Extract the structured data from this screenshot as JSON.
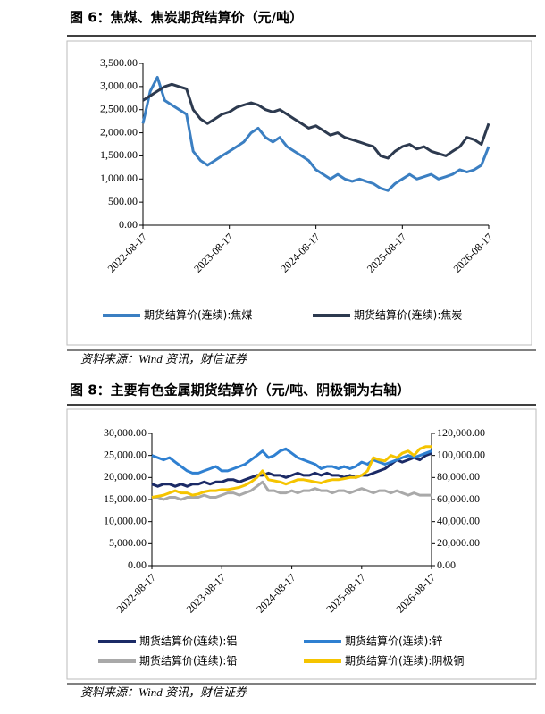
{
  "chart_data": [
    {
      "type": "line",
      "title": "图 6：焦煤、焦炭期货结算价（元/吨）",
      "source": "资料来源：Wind 资讯，财信证券",
      "x": [
        "2022-08-17",
        "2022-09-17",
        "2022-10-17",
        "2022-11-17",
        "2022-12-17",
        "2023-01-17",
        "2023-02-17",
        "2023-03-17",
        "2023-04-17",
        "2023-05-17",
        "2023-06-17",
        "2023-07-17",
        "2023-08-17",
        "2023-09-17",
        "2023-10-17",
        "2023-11-17",
        "2023-12-17",
        "2024-01-17",
        "2024-02-17",
        "2024-03-17",
        "2024-04-17",
        "2024-05-17",
        "2024-06-17",
        "2024-07-17",
        "2024-08-17",
        "2024-09-17",
        "2024-10-17",
        "2024-11-17",
        "2024-12-17",
        "2025-01-17",
        "2025-02-17",
        "2025-03-17",
        "2025-04-17",
        "2025-05-17",
        "2025-06-17",
        "2025-07-17",
        "2025-08-17",
        "2025-09-17",
        "2025-10-17",
        "2025-11-17",
        "2025-12-17",
        "2026-01-17",
        "2026-02-17",
        "2026-03-17",
        "2026-04-17",
        "2026-05-17",
        "2026-06-17",
        "2026-07-17",
        "2026-08-17"
      ],
      "xlim": [
        "2022-08-17",
        "2026-08-17"
      ],
      "xticks": [
        "2022-08-17",
        "2023-08-17",
        "2024-08-17",
        "2025-08-17",
        "2026-08-17"
      ],
      "ylim": [
        0,
        3500
      ],
      "yticks": [
        {
          "value": 0,
          "label": "0.00"
        },
        {
          "value": 500,
          "label": "500.00"
        },
        {
          "value": 1000,
          "label": "1,000.00"
        },
        {
          "value": 1500,
          "label": "1,500.00"
        },
        {
          "value": 2000,
          "label": "2,000.00"
        },
        {
          "value": 2500,
          "label": "2,500.00"
        },
        {
          "value": 3000,
          "label": "3,000.00"
        },
        {
          "value": 3500,
          "label": "3,500.00"
        }
      ],
      "series": [
        {
          "name": "期货结算价(连续):焦煤",
          "color": "#3b7fc2",
          "values": [
            2200,
            2900,
            3200,
            2700,
            2600,
            2500,
            2400,
            1600,
            1400,
            1300,
            1400,
            1500,
            1600,
            1700,
            1800,
            2000,
            2100,
            1900,
            1800,
            1900,
            1700,
            1600,
            1500,
            1400,
            1200,
            1100,
            1000,
            1100,
            1000,
            950,
            1000,
            950,
            900,
            800,
            750,
            900,
            1000,
            1100,
            1000,
            1050,
            1100,
            1000,
            1050,
            1100,
            1200,
            1150,
            1200,
            1300,
            1700
          ]
        },
        {
          "name": "期货结算价(连续):焦炭",
          "color": "#2d3a4f",
          "values": [
            2700,
            2800,
            2900,
            3000,
            3050,
            3000,
            2950,
            2500,
            2300,
            2200,
            2300,
            2400,
            2450,
            2550,
            2600,
            2650,
            2600,
            2500,
            2450,
            2500,
            2400,
            2300,
            2200,
            2100,
            2150,
            2050,
            1950,
            2000,
            1900,
            1850,
            1800,
            1750,
            1700,
            1500,
            1450,
            1600,
            1700,
            1750,
            1650,
            1700,
            1600,
            1550,
            1500,
            1600,
            1700,
            1900,
            1850,
            1750,
            2200
          ]
        }
      ]
    },
    {
      "type": "line",
      "title": "图 8：主要有色金属期货结算价（元/吨、阴极铜为右轴）",
      "source": "资料来源：Wind 资讯，财信证券",
      "x": [
        "2022-08-17",
        "2022-09-17",
        "2022-10-17",
        "2022-11-17",
        "2022-12-17",
        "2023-01-17",
        "2023-02-17",
        "2023-03-17",
        "2023-04-17",
        "2023-05-17",
        "2023-06-17",
        "2023-07-17",
        "2023-08-17",
        "2023-09-17",
        "2023-10-17",
        "2023-11-17",
        "2023-12-17",
        "2024-01-17",
        "2024-02-17",
        "2024-03-17",
        "2024-04-17",
        "2024-05-17",
        "2024-06-17",
        "2024-07-17",
        "2024-08-17",
        "2024-09-17",
        "2024-10-17",
        "2024-11-17",
        "2024-12-17",
        "2025-01-17",
        "2025-02-17",
        "2025-03-17",
        "2025-04-17",
        "2025-05-17",
        "2025-06-17",
        "2025-07-17",
        "2025-08-17",
        "2025-09-17",
        "2025-10-17",
        "2025-11-17",
        "2025-12-17",
        "2026-01-17",
        "2026-02-17",
        "2026-03-17",
        "2026-04-17",
        "2026-05-17",
        "2026-06-17",
        "2026-07-17",
        "2026-08-17"
      ],
      "xlim": [
        "2022-08-17",
        "2026-08-17"
      ],
      "xticks": [
        "2022-08-17",
        "2023-08-17",
        "2024-08-17",
        "2025-08-17",
        "2026-08-17"
      ],
      "ylim": [
        0,
        30000
      ],
      "yticks": [
        {
          "value": 0,
          "label": "0.00"
        },
        {
          "value": 5000,
          "label": "5,000.00"
        },
        {
          "value": 10000,
          "label": "10,000.00"
        },
        {
          "value": 15000,
          "label": "15,000.00"
        },
        {
          "value": 20000,
          "label": "20,000.00"
        },
        {
          "value": 25000,
          "label": "25,000.00"
        },
        {
          "value": 30000,
          "label": "30,000.00"
        }
      ],
      "y2lim": [
        0,
        120000
      ],
      "y2ticks": [
        {
          "value": 0,
          "label": "0.00"
        },
        {
          "value": 20000,
          "label": "20,000.00"
        },
        {
          "value": 40000,
          "label": "40,000.00"
        },
        {
          "value": 60000,
          "label": "60,000.00"
        },
        {
          "value": 80000,
          "label": "80,000.00"
        },
        {
          "value": 100000,
          "label": "100,000.00"
        },
        {
          "value": 120000,
          "label": "120,000.00"
        }
      ],
      "series": [
        {
          "name": "期货结算价(连续):铝",
          "color": "#1b2a66",
          "values": [
            18500,
            18000,
            18500,
            18500,
            18000,
            18500,
            18000,
            18500,
            18500,
            19000,
            18500,
            19000,
            19000,
            19500,
            19500,
            19000,
            19500,
            20000,
            20500,
            20500,
            21000,
            20500,
            20500,
            20000,
            20500,
            21000,
            20500,
            20500,
            21000,
            20500,
            21000,
            20500,
            20500,
            20000,
            20500,
            20000,
            20500,
            20500,
            21000,
            21500,
            22000,
            23000,
            24000,
            23500,
            24000,
            24500,
            24000,
            25000,
            25500
          ]
        },
        {
          "name": "期货结算价(连续):锌",
          "color": "#2f80d1",
          "values": [
            25000,
            24500,
            24000,
            24500,
            23500,
            22500,
            21500,
            21000,
            21000,
            21500,
            22000,
            22500,
            21500,
            21500,
            22000,
            22500,
            23000,
            24000,
            25000,
            26000,
            24500,
            25000,
            26000,
            26500,
            25500,
            24500,
            24000,
            23500,
            23000,
            22000,
            22500,
            22500,
            22000,
            22500,
            22000,
            22500,
            23500,
            23000,
            24000,
            23500,
            23000,
            23500,
            24000,
            24500,
            25000,
            24500,
            25000,
            25500,
            26000
          ]
        },
        {
          "name": "期货结算价(连续):铅",
          "color": "#a9a9a9",
          "values": [
            15500,
            15500,
            15000,
            15500,
            15500,
            15000,
            15500,
            15500,
            15500,
            16000,
            15500,
            15500,
            16000,
            16500,
            16500,
            16000,
            16500,
            17000,
            18000,
            19000,
            17000,
            17000,
            16500,
            16500,
            17000,
            16500,
            17000,
            17000,
            17500,
            17000,
            17000,
            16500,
            17000,
            17000,
            16500,
            17000,
            17500,
            17000,
            16500,
            17000,
            17000,
            16500,
            17000,
            16500,
            16000,
            16500,
            16000,
            16000,
            16000
          ]
        },
        {
          "name": "期货结算价(连续):阴极铜",
          "color": "#f5c400",
          "axis": "y2",
          "values": [
            62000,
            63000,
            64000,
            66000,
            68000,
            66000,
            66000,
            64000,
            65000,
            67000,
            68000,
            68000,
            69000,
            69000,
            70000,
            71000,
            73000,
            76000,
            80000,
            86000,
            78000,
            77000,
            76000,
            74000,
            76000,
            78000,
            78000,
            77000,
            76000,
            75000,
            77000,
            78000,
            78000,
            79000,
            80000,
            80000,
            82000,
            86000,
            98000,
            96000,
            95000,
            100000,
            98000,
            102000,
            104000,
            100000,
            106000,
            108000,
            108000
          ]
        }
      ]
    }
  ]
}
